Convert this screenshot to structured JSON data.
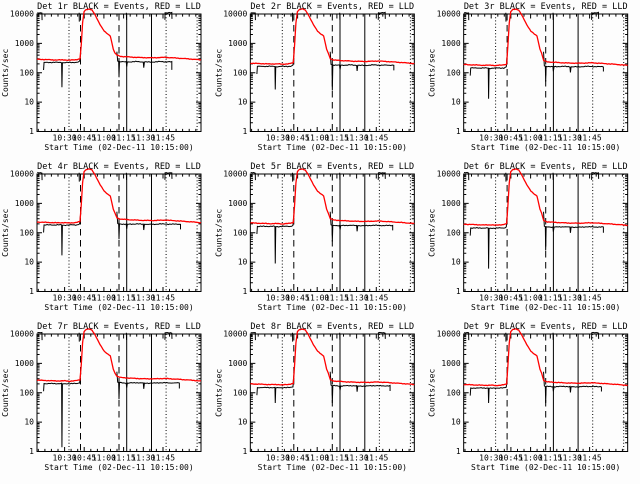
{
  "app": {
    "background": "#fdfdfd",
    "foreground": "#000000"
  },
  "chart_data": {
    "type": "line",
    "layout": {
      "grid_rows": 3,
      "grid_cols": 3,
      "y_scale": "log",
      "grid_lines": "off",
      "legend_position": "in-title"
    },
    "shared": {
      "xlabel": "Start Time (02-Dec-11 10:15:00)",
      "ylabel": "Counts/sec",
      "legend": {
        "black": "Events",
        "red": "LLD"
      },
      "colors": {
        "events": "#000000",
        "lld": "#ff0000",
        "axis": "#000000"
      },
      "ylim": [
        1,
        10000
      ],
      "y_ticks": [
        {
          "label": "1",
          "value": 1
        },
        {
          "label": "10",
          "value": 10
        },
        {
          "label": "100",
          "value": 100
        },
        {
          "label": "1000",
          "value": 1000
        },
        {
          "label": "10000",
          "value": 10000
        }
      ],
      "x_ticks": [
        {
          "label": "10:30",
          "frac": 0.168
        },
        {
          "label": "10:45",
          "frac": 0.288
        },
        {
          "label": "11:00",
          "frac": 0.408
        },
        {
          "label": "11:15",
          "frac": 0.528
        },
        {
          "label": "11:30",
          "frac": 0.648
        },
        {
          "label": "11:45",
          "frac": 0.768
        }
      ],
      "x_minor_step_frac": 0.04,
      "x_minor_offset_frac": 0.008,
      "vlines": [
        {
          "style": "dotted",
          "frac": 0.195
        },
        {
          "style": "dashed",
          "frac": 0.265
        },
        {
          "style": "dashed",
          "frac": 0.5
        },
        {
          "style": "solid",
          "frac": 0.547
        },
        {
          "style": "solid",
          "frac": 0.698
        },
        {
          "style": "dotted",
          "frac": 0.787
        },
        {
          "style": "dotted",
          "frac": 0.976
        }
      ],
      "red_shape": [
        [
          0.0,
          "b",
          1.03
        ],
        [
          0.06,
          "b",
          1.0
        ],
        [
          0.12,
          "b",
          0.97
        ],
        [
          0.17,
          "b",
          0.98
        ],
        [
          0.195,
          "b",
          0.95
        ],
        [
          0.235,
          "b",
          0.99
        ],
        [
          0.262,
          "b",
          1.06
        ],
        [
          0.27,
          "a",
          900
        ],
        [
          0.278,
          "a",
          5000
        ],
        [
          0.287,
          "a",
          12000
        ],
        [
          0.3,
          "a",
          14300
        ],
        [
          0.32,
          "a",
          14800
        ],
        [
          0.335,
          "a",
          13600
        ],
        [
          0.35,
          "a",
          10200
        ],
        [
          0.362,
          "a",
          7600
        ],
        [
          0.385,
          "a",
          4300
        ],
        [
          0.41,
          "a",
          2600
        ],
        [
          0.432,
          "a",
          2050
        ],
        [
          0.447,
          "a",
          1800
        ],
        [
          0.457,
          "a",
          1020
        ],
        [
          0.465,
          "a",
          640
        ],
        [
          0.475,
          "a",
          470
        ],
        [
          0.488,
          "t",
          1.1
        ],
        [
          0.51,
          "t",
          1.0
        ],
        [
          0.57,
          "t",
          0.95
        ],
        [
          0.64,
          "t",
          0.91
        ],
        [
          0.71,
          "t",
          0.9
        ],
        [
          0.78,
          "t",
          0.93
        ],
        [
          0.85,
          "t",
          0.88
        ],
        [
          0.93,
          "t",
          0.82
        ],
        [
          1.0,
          "t",
          0.76
        ]
      ],
      "black_shapes": {
        "top_left": [
          [
            0.002,
            "a",
            11000
          ],
          [
            0.03,
            "a",
            11000
          ],
          [
            0.031,
            "a",
            6200
          ]
        ],
        "pre": [
          [
            0.04,
            "b",
            0.55
          ],
          [
            0.043,
            "b",
            1.0
          ],
          [
            0.09,
            "b",
            1.0
          ],
          [
            0.15,
            "b",
            1.0
          ],
          [
            0.152,
            "d1",
            1
          ],
          [
            0.155,
            "b",
            0.97
          ],
          [
            0.2,
            "b",
            1.0
          ],
          [
            0.245,
            "b",
            1.0
          ],
          [
            0.26,
            "b",
            1.08
          ],
          [
            0.263,
            "a",
            300
          ],
          [
            0.267,
            "a",
            480
          ]
        ],
        "flare_tick": [
          [
            0.257,
            "a",
            11000
          ],
          [
            0.258,
            "a",
            5500
          ]
        ],
        "post": [
          [
            0.487,
            "a",
            520
          ],
          [
            0.492,
            "t",
            1.04
          ],
          [
            0.498,
            "t",
            1.0
          ],
          [
            0.5,
            "d2",
            1
          ],
          [
            0.503,
            "t",
            1.0
          ],
          [
            0.544,
            "t",
            0.97
          ],
          [
            0.547,
            "t",
            0.68
          ],
          [
            0.551,
            "t",
            0.97
          ],
          [
            0.61,
            "t",
            1.0
          ],
          [
            0.648,
            "t",
            0.97
          ],
          [
            0.651,
            "t",
            0.62
          ],
          [
            0.655,
            "t",
            0.97
          ],
          [
            0.7,
            "t",
            0.96
          ],
          [
            0.75,
            "t",
            1.0
          ],
          [
            0.8,
            "t",
            0.98
          ],
          [
            "END",
            "t",
            0.98
          ],
          [
            "END",
            "e",
            1
          ]
        ],
        "mid_spike": [
          [
            0.545,
            "a",
            11000
          ],
          [
            0.546,
            "a",
            6300
          ]
        ],
        "top_bracket": [
          [
            0.78,
            "a",
            6300
          ],
          [
            0.781,
            "a",
            11000
          ],
          [
            0.822,
            "a",
            11000
          ],
          [
            0.823,
            "a",
            6800
          ]
        ]
      }
    },
    "panels": [
      {
        "det": "Det 1r",
        "title": "Det 1r BLACK = Events, RED = LLD",
        "red_base": 280,
        "red_tail": 360,
        "black_base": 225,
        "black_tail": 240,
        "dip1": 32,
        "dip2": 70,
        "end_frac": 0.822,
        "end_val": 125
      },
      {
        "det": "Det 2r",
        "title": "Det 2r BLACK = Events, RED = LLD",
        "red_base": 205,
        "red_tail": 270,
        "black_base": 165,
        "black_tail": 185,
        "dip1": 27,
        "dip2": 25,
        "end_frac": 0.875,
        "end_val": 120
      },
      {
        "det": "Det 3r",
        "title": "Det 3r BLACK = Events, RED = LLD",
        "red_base": 185,
        "red_tail": 235,
        "black_base": 145,
        "black_tail": 165,
        "dip1": 13,
        "dip2": 50,
        "end_frac": 0.852,
        "end_val": 110
      },
      {
        "det": "Det 4r",
        "title": "Det 4r BLACK = Events, RED = LLD",
        "red_base": 225,
        "red_tail": 290,
        "black_base": 185,
        "black_tail": 200,
        "dip1": 17,
        "dip2": 60,
        "end_frac": 0.875,
        "end_val": 130
      },
      {
        "det": "Det 5r",
        "title": "Det 5r BLACK = Events, RED = LLD",
        "red_base": 210,
        "red_tail": 270,
        "black_base": 165,
        "black_tail": 180,
        "dip1": 9,
        "dip2": 50,
        "end_frac": 0.868,
        "end_val": 120
      },
      {
        "det": "Det 6r",
        "title": "Det 6r BLACK = Events, RED = LLD",
        "red_base": 190,
        "red_tail": 235,
        "black_base": 145,
        "black_tail": 160,
        "dip1": 6,
        "dip2": 25,
        "end_frac": 0.852,
        "end_val": 100
      },
      {
        "det": "Det 7r",
        "title": "Det 7r BLACK = Events, RED = LLD",
        "red_base": 260,
        "red_tail": 330,
        "black_base": 205,
        "black_tail": 220,
        "dip1": 1.4,
        "dip2": 60,
        "end_frac": 0.868,
        "end_val": 140
      },
      {
        "det": "Det 8r",
        "title": "Det 8r BLACK = Events, RED = LLD",
        "red_base": 195,
        "red_tail": 250,
        "black_base": 150,
        "black_tail": 175,
        "dip1": 45,
        "dip2": 45,
        "end_frac": 0.852,
        "end_val": 115
      },
      {
        "det": "Det 9r",
        "title": "Det 9r BLACK = Events, RED = LLD",
        "red_base": 185,
        "red_tail": 235,
        "black_base": 145,
        "black_tail": 165,
        "dip1": 45,
        "dip2": 45,
        "end_frac": 0.84,
        "end_val": 110
      }
    ]
  }
}
